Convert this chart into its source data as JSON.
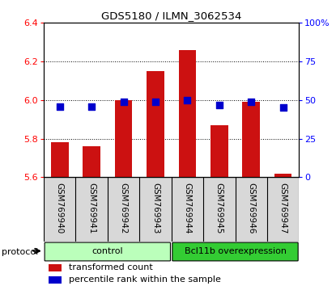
{
  "title": "GDS5180 / ILMN_3062534",
  "samples": [
    "GSM769940",
    "GSM769941",
    "GSM769942",
    "GSM769943",
    "GSM769944",
    "GSM769945",
    "GSM769946",
    "GSM769947"
  ],
  "bar_values": [
    5.78,
    5.76,
    6.0,
    6.15,
    6.26,
    5.87,
    5.99,
    5.62
  ],
  "bar_base": 5.6,
  "percentile_values": [
    46,
    46,
    49,
    49,
    50,
    47,
    49,
    45
  ],
  "groups": [
    {
      "label": "control",
      "start": 0,
      "end": 4,
      "color": "#bbffbb"
    },
    {
      "label": "Bcl11b overexpression",
      "start": 4,
      "end": 8,
      "color": "#33cc33"
    }
  ],
  "ylim_left": [
    5.6,
    6.4
  ],
  "ylim_right": [
    0,
    100
  ],
  "yticks_left": [
    5.6,
    5.8,
    6.0,
    6.2,
    6.4
  ],
  "yticks_right": [
    0,
    25,
    50,
    75,
    100
  ],
  "ytick_labels_right": [
    "0",
    "25",
    "50",
    "75",
    "100%"
  ],
  "bar_color": "#cc1111",
  "percentile_color": "#0000cc",
  "bg_color": "#d8d8d8",
  "protocol_label": "protocol",
  "legend_bar_label": "transformed count",
  "legend_pct_label": "percentile rank within the sample",
  "fig_width": 4.15,
  "fig_height": 3.54
}
